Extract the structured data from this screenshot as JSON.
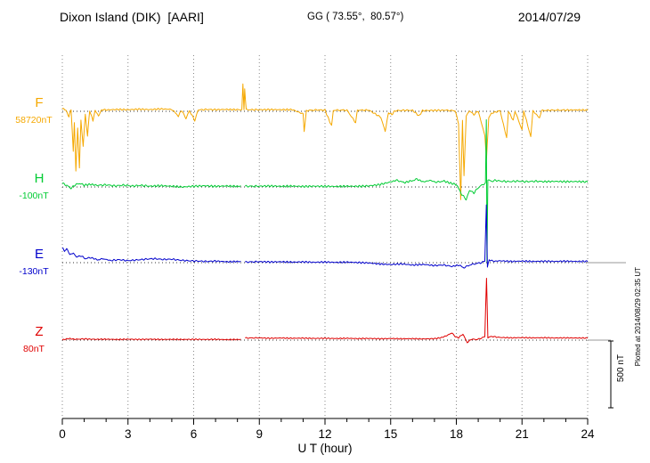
{
  "header": {
    "station": "Dixon Island (DIK)  [AARI]",
    "coords": "GG ( 73.55°,  80.57°)",
    "date": "2014/07/29"
  },
  "chart_data": {
    "type": "line",
    "title": "Dixon Island (DIK) [AARI] magnetogram 2014/07/29",
    "xlabel": "U T (hour)",
    "x_range": [
      0,
      24
    ],
    "x_ticks": [
      0,
      3,
      6,
      9,
      12,
      15,
      18,
      21,
      24
    ],
    "grid": "dotted vertical lines at 3-hour ticks; dotted horizontal baseline per trace",
    "scale_bar": {
      "label": "500 nT",
      "nT": 500
    },
    "plotted_at": "Plotted at 2014/08/29 02:35 UT",
    "points_are": "[hour, nT offset from series baseline; null = data gap]",
    "series": [
      {
        "name": "F",
        "baseline_label": "58720nT",
        "color": "#F5A800",
        "points": [
          [
            0,
            20
          ],
          [
            0.15,
            12
          ],
          [
            0.3,
            -40
          ],
          [
            0.4,
            15
          ],
          [
            0.5,
            -300
          ],
          [
            0.55,
            -80
          ],
          [
            0.62,
            -450
          ],
          [
            0.7,
            -120
          ],
          [
            0.78,
            -430
          ],
          [
            0.85,
            -60
          ],
          [
            0.95,
            -260
          ],
          [
            1.05,
            -20
          ],
          [
            1.15,
            -180
          ],
          [
            1.25,
            5
          ],
          [
            1.4,
            -70
          ],
          [
            1.5,
            8
          ],
          [
            1.65,
            -35
          ],
          [
            1.8,
            12
          ],
          [
            2,
            10
          ],
          [
            2.5,
            14
          ],
          [
            3,
            12
          ],
          [
            3.5,
            16
          ],
          [
            4,
            13
          ],
          [
            4.5,
            18
          ],
          [
            5,
            14
          ],
          [
            5.3,
            -35
          ],
          [
            5.45,
            8
          ],
          [
            5.65,
            -55
          ],
          [
            5.8,
            6
          ],
          [
            6.05,
            -70
          ],
          [
            6.2,
            10
          ],
          [
            6.6,
            14
          ],
          [
            7,
            12
          ],
          [
            7.5,
            14
          ],
          [
            8,
            12
          ],
          [
            8.2,
            12
          ],
          [
            8.25,
            200
          ],
          [
            8.3,
            10
          ],
          [
            8.33,
            170
          ],
          [
            8.4,
            12
          ],
          [
            9,
            12
          ],
          [
            9.5,
            13
          ],
          [
            10,
            12
          ],
          [
            10.5,
            13
          ],
          [
            11,
            -20
          ],
          [
            11.05,
            -150
          ],
          [
            11.15,
            6
          ],
          [
            11.6,
            10
          ],
          [
            12,
            9
          ],
          [
            12.3,
            -110
          ],
          [
            12.38,
            8
          ],
          [
            13,
            9
          ],
          [
            13.4,
            -85
          ],
          [
            13.48,
            8
          ],
          [
            14,
            9
          ],
          [
            14.55,
            -45
          ],
          [
            14.75,
            -150
          ],
          [
            14.9,
            -10
          ],
          [
            15.05,
            -25
          ],
          [
            15.2,
            4
          ],
          [
            15.6,
            8
          ],
          [
            16,
            7
          ],
          [
            16.3,
            -35
          ],
          [
            16.45,
            5
          ],
          [
            17,
            7
          ],
          [
            17.5,
            8
          ],
          [
            17.95,
            4
          ],
          [
            18.1,
            -90
          ],
          [
            18.2,
            -660
          ],
          [
            18.28,
            -70
          ],
          [
            18.35,
            -480
          ],
          [
            18.45,
            -35
          ],
          [
            18.6,
            4
          ],
          [
            18.8,
            -25
          ],
          [
            19,
            2
          ],
          [
            19.3,
            -180
          ],
          [
            19.38,
            -350
          ],
          [
            19.48,
            -50
          ],
          [
            19.6,
            -15
          ],
          [
            20,
            4
          ],
          [
            20.3,
            -200
          ],
          [
            20.38,
            2
          ],
          [
            20.6,
            -70
          ],
          [
            20.68,
            4
          ],
          [
            21,
            -140
          ],
          [
            21.08,
            4
          ],
          [
            21.4,
            -190
          ],
          [
            21.5,
            3
          ],
          [
            21.8,
            -50
          ],
          [
            21.9,
            6
          ],
          [
            22.3,
            8
          ],
          [
            23,
            9
          ],
          [
            23.5,
            10
          ],
          [
            24,
            9
          ]
        ]
      },
      {
        "name": "H",
        "baseline_label": "-100nT",
        "color": "#00CC33",
        "points": [
          [
            0,
            28
          ],
          [
            0.2,
            12
          ],
          [
            0.4,
            -10
          ],
          [
            0.6,
            18
          ],
          [
            0.8,
            26
          ],
          [
            1,
            14
          ],
          [
            1.3,
            20
          ],
          [
            1.6,
            12
          ],
          [
            2,
            16
          ],
          [
            2.4,
            8
          ],
          [
            2.8,
            14
          ],
          [
            3.2,
            7
          ],
          [
            3.6,
            12
          ],
          [
            4,
            6
          ],
          [
            4.5,
            10
          ],
          [
            5,
            6
          ],
          [
            5.5,
            0
          ],
          [
            6,
            6
          ],
          [
            6.5,
            9
          ],
          [
            7,
            5
          ],
          [
            7.5,
            8
          ],
          [
            8,
            5
          ],
          [
            8.15,
            6
          ],
          [
            8.2,
            null
          ],
          [
            8.35,
            5
          ],
          [
            9,
            6
          ],
          [
            9.5,
            8
          ],
          [
            10,
            5
          ],
          [
            10.5,
            7
          ],
          [
            11,
            4
          ],
          [
            11.5,
            6
          ],
          [
            12,
            5
          ],
          [
            12.5,
            4
          ],
          [
            13,
            6
          ],
          [
            13.5,
            5
          ],
          [
            14,
            8
          ],
          [
            14.5,
            18
          ],
          [
            15,
            38
          ],
          [
            15.3,
            52
          ],
          [
            15.6,
            32
          ],
          [
            15.9,
            44
          ],
          [
            16.2,
            58
          ],
          [
            16.5,
            38
          ],
          [
            16.8,
            50
          ],
          [
            17.1,
            34
          ],
          [
            17.4,
            46
          ],
          [
            17.7,
            30
          ],
          [
            18,
            18
          ],
          [
            18.25,
            -55
          ],
          [
            18.45,
            -95
          ],
          [
            18.6,
            -25
          ],
          [
            18.8,
            -45
          ],
          [
            19,
            -5
          ],
          [
            19.2,
            18
          ],
          [
            19.33,
            30
          ],
          [
            19.37,
            500
          ],
          [
            19.4,
            -560
          ],
          [
            19.44,
            55
          ],
          [
            19.6,
            42
          ],
          [
            19.8,
            50
          ],
          [
            20,
            44
          ],
          [
            20.4,
            40
          ],
          [
            20.8,
            44
          ],
          [
            21.2,
            40
          ],
          [
            21.6,
            43
          ],
          [
            22,
            40
          ],
          [
            22.5,
            42
          ],
          [
            23,
            40
          ],
          [
            23.5,
            41
          ],
          [
            24,
            38
          ]
        ]
      },
      {
        "name": "E",
        "baseline_label": "-130nT",
        "color": "#0000CC",
        "points": [
          [
            0,
            115
          ],
          [
            0.1,
            85
          ],
          [
            0.2,
            105
          ],
          [
            0.35,
            60
          ],
          [
            0.5,
            72
          ],
          [
            0.65,
            42
          ],
          [
            0.85,
            52
          ],
          [
            1.05,
            30
          ],
          [
            1.3,
            38
          ],
          [
            1.6,
            22
          ],
          [
            1.9,
            28
          ],
          [
            2.2,
            16
          ],
          [
            2.6,
            22
          ],
          [
            3,
            15
          ],
          [
            3.4,
            20
          ],
          [
            3.8,
            26
          ],
          [
            4.2,
            30
          ],
          [
            4.6,
            24
          ],
          [
            5,
            26
          ],
          [
            5.4,
            18
          ],
          [
            5.8,
            14
          ],
          [
            6.2,
            12
          ],
          [
            6.6,
            9
          ],
          [
            7,
            12
          ],
          [
            7.5,
            7
          ],
          [
            8,
            9
          ],
          [
            8.15,
            8
          ],
          [
            8.2,
            null
          ],
          [
            8.35,
            4
          ],
          [
            9,
            8
          ],
          [
            9.5,
            5
          ],
          [
            10,
            7
          ],
          [
            10.5,
            4
          ],
          [
            11,
            6
          ],
          [
            11.5,
            3
          ],
          [
            12,
            5
          ],
          [
            12.5,
            2
          ],
          [
            13,
            4
          ],
          [
            13.5,
            1
          ],
          [
            14,
            -2
          ],
          [
            14.5,
            -10
          ],
          [
            15,
            -14
          ],
          [
            15.5,
            -9
          ],
          [
            16,
            -18
          ],
          [
            16.5,
            -13
          ],
          [
            17,
            -22
          ],
          [
            17.4,
            -17
          ],
          [
            17.8,
            -28
          ],
          [
            18.1,
            -18
          ],
          [
            18.35,
            -38
          ],
          [
            18.6,
            -18
          ],
          [
            18.85,
            -8
          ],
          [
            19.1,
            -2
          ],
          [
            19.3,
            12
          ],
          [
            19.37,
            430
          ],
          [
            19.42,
            -35
          ],
          [
            19.5,
            22
          ],
          [
            19.7,
            10
          ],
          [
            20,
            14
          ],
          [
            20.5,
            9
          ],
          [
            21,
            12
          ],
          [
            21.5,
            9
          ],
          [
            22,
            11
          ],
          [
            22.5,
            9
          ],
          [
            23,
            11
          ],
          [
            23.5,
            9
          ],
          [
            24,
            10
          ]
        ]
      },
      {
        "name": "Z",
        "baseline_label": "80nT",
        "color": "#E00000",
        "points": [
          [
            0,
            2
          ],
          [
            0.3,
            12
          ],
          [
            0.6,
            6
          ],
          [
            1,
            9
          ],
          [
            1.5,
            6
          ],
          [
            2,
            7
          ],
          [
            2.5,
            5
          ],
          [
            3,
            7
          ],
          [
            3.5,
            5
          ],
          [
            4,
            7
          ],
          [
            4.5,
            5
          ],
          [
            5,
            6
          ],
          [
            5.5,
            5
          ],
          [
            6,
            6
          ],
          [
            6.5,
            5
          ],
          [
            7,
            6
          ],
          [
            7.5,
            4
          ],
          [
            8,
            5
          ],
          [
            8.15,
            5
          ],
          [
            8.2,
            null
          ],
          [
            8.35,
            16
          ],
          [
            9,
            17
          ],
          [
            9.5,
            14
          ],
          [
            10,
            16
          ],
          [
            10.5,
            14
          ],
          [
            11,
            15
          ],
          [
            11.5,
            13
          ],
          [
            12,
            14
          ],
          [
            12.5,
            12
          ],
          [
            13,
            14
          ],
          [
            13.5,
            11
          ],
          [
            14,
            13
          ],
          [
            14.5,
            10
          ],
          [
            15,
            12
          ],
          [
            15.5,
            10
          ],
          [
            16,
            11
          ],
          [
            16.5,
            9
          ],
          [
            17,
            11
          ],
          [
            17.3,
            18
          ],
          [
            17.6,
            36
          ],
          [
            17.8,
            55
          ],
          [
            17.95,
            26
          ],
          [
            18.1,
            18
          ],
          [
            18.3,
            45
          ],
          [
            18.5,
            -18
          ],
          [
            18.7,
            8
          ],
          [
            18.9,
            4
          ],
          [
            19.1,
            12
          ],
          [
            19.3,
            26
          ],
          [
            19.38,
            465
          ],
          [
            19.44,
            18
          ],
          [
            19.6,
            28
          ],
          [
            19.8,
            24
          ],
          [
            20,
            20
          ],
          [
            20.5,
            17
          ],
          [
            21,
            19
          ],
          [
            21.5,
            17
          ],
          [
            22,
            18
          ],
          [
            22.5,
            16
          ],
          [
            23,
            17
          ],
          [
            23.5,
            16
          ],
          [
            24,
            16
          ]
        ]
      }
    ]
  }
}
